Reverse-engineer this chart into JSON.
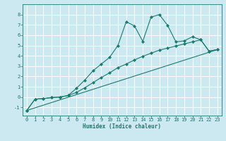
{
  "xlabel": "Humidex (Indice chaleur)",
  "bg_color": "#cce8f0",
  "grid_color": "#ffffff",
  "line_color": "#1a7a6e",
  "xlim": [
    -0.5,
    23.5
  ],
  "ylim": [
    -1.8,
    9.0
  ],
  "yticks": [
    -1,
    0,
    1,
    2,
    3,
    4,
    5,
    6,
    7,
    8
  ],
  "xticks": [
    0,
    1,
    2,
    3,
    4,
    5,
    6,
    7,
    8,
    9,
    10,
    11,
    12,
    13,
    14,
    15,
    16,
    17,
    18,
    19,
    20,
    21,
    22,
    23
  ],
  "series1_x": [
    0,
    1,
    2,
    3,
    4,
    5,
    6,
    7,
    8,
    9,
    10,
    11,
    12,
    13,
    14,
    15,
    16,
    17,
    18,
    19,
    20,
    21,
    22,
    23
  ],
  "series1_y": [
    -1.3,
    -0.2,
    -0.15,
    -0.05,
    0.0,
    0.15,
    0.85,
    1.65,
    2.55,
    3.2,
    3.85,
    5.0,
    7.3,
    6.9,
    5.4,
    7.75,
    8.0,
    6.95,
    5.35,
    5.45,
    5.85,
    5.55,
    4.45,
    4.6
  ],
  "series2_x": [
    0,
    1,
    2,
    3,
    4,
    5,
    6,
    7,
    8,
    9,
    10,
    11,
    12,
    13,
    14,
    15,
    16,
    17,
    18,
    19,
    20,
    21,
    22,
    23
  ],
  "series2_y": [
    -1.3,
    -0.2,
    -0.15,
    -0.05,
    0.0,
    0.15,
    0.45,
    0.9,
    1.4,
    1.9,
    2.35,
    2.85,
    3.2,
    3.6,
    3.95,
    4.25,
    4.55,
    4.75,
    4.95,
    5.15,
    5.35,
    5.55,
    4.45,
    4.6
  ],
  "series3_x": [
    0,
    23
  ],
  "series3_y": [
    -1.3,
    4.6
  ],
  "tick_fontsize": 5.0,
  "xlabel_fontsize": 5.5,
  "lw": 0.8,
  "ms": 2.2
}
